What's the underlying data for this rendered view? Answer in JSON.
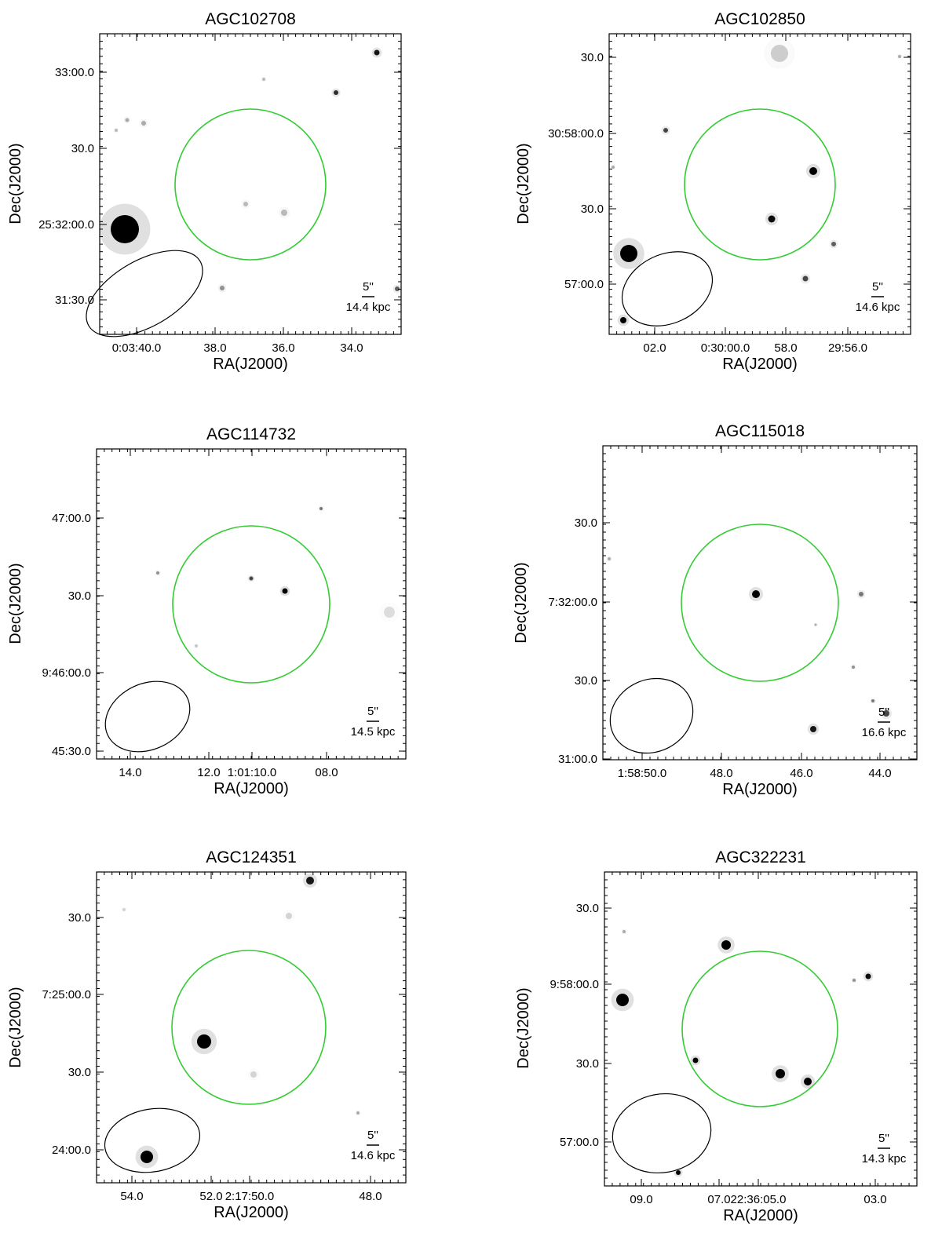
{
  "panels": [
    {
      "title": "AGC102708",
      "xlabel": "RA(J2000)",
      "ylabel": "Dec(J2000)",
      "xticks": [
        "0:03:40.0",
        "38.0",
        "36.0",
        "34.0"
      ],
      "yticks": [
        "33:00.0",
        "30.0",
        "25:32:00.0",
        "31:30.0"
      ],
      "scale_bar": "5''",
      "scale_kpc": "14.4 kpc"
    },
    {
      "title": "AGC102850",
      "xlabel": "RA(J2000)",
      "ylabel": "Dec(J2000)",
      "xticks": [
        "02.0",
        "0:30:00.0",
        "58.0",
        "29:56.0"
      ],
      "yticks": [
        "30.0",
        "30:58:00.0",
        "30.0",
        "57:00.0"
      ],
      "scale_bar": "5''",
      "scale_kpc": "14.6 kpc"
    },
    {
      "title": "AGC114732",
      "xlabel": "RA(J2000)",
      "ylabel": "Dec(J2000)",
      "xticks": [
        "14.0",
        "12.0",
        "1:01:10.0",
        "08.0"
      ],
      "yticks": [
        "47:00.0",
        "30.0",
        "9:46:00.0",
        "45:30.0"
      ],
      "scale_bar": "5''",
      "scale_kpc": "14.5 kpc"
    },
    {
      "title": "AGC115018",
      "xlabel": "RA(J2000)",
      "ylabel": "Dec(J2000)",
      "xticks": [
        "1:58:50.0",
        "48.0",
        "46.0",
        "44.0"
      ],
      "yticks": [
        "30.0",
        "7:32:00.0",
        "30.0",
        "31:00.0"
      ],
      "scale_bar": "5''",
      "scale_kpc": "16.6 kpc"
    },
    {
      "title": "AGC124351",
      "xlabel": "RA(J2000)",
      "ylabel": "Dec(J2000)",
      "xticks": [
        "54.0",
        "52.0",
        "2:17:50.0",
        "48.0"
      ],
      "yticks": [
        "30.0",
        "7:25:00.0",
        "30.0",
        "24:00.0"
      ],
      "scale_bar": "5''",
      "scale_kpc": "14.6 kpc"
    },
    {
      "title": "AGC322231",
      "xlabel": "RA(J2000)",
      "ylabel": "Dec(J2000)",
      "xticks": [
        "09.0",
        "07.0",
        "22:36:05.0",
        "03.0"
      ],
      "yticks": [
        "30.0",
        "9:58:00.0",
        "30.0",
        "57:00.0"
      ],
      "scale_bar": "5''",
      "scale_kpc": "14.3 kpc"
    }
  ],
  "colors": {
    "aperture_circle": "#33cc33",
    "beam_ellipse": "#000000",
    "sources": "#000000"
  }
}
